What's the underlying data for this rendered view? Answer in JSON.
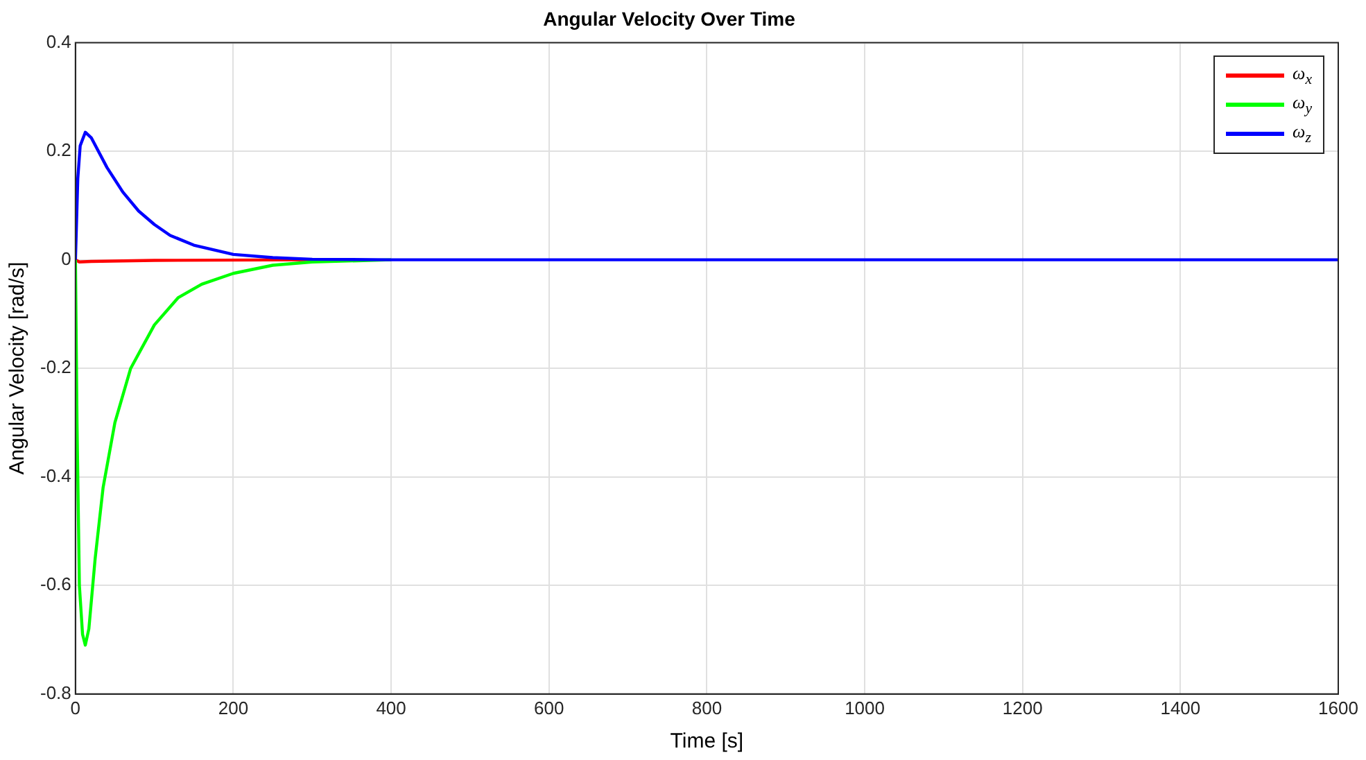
{
  "chart_data": {
    "type": "line",
    "title": "Angular Velocity Over Time",
    "xlabel": "Time [s]",
    "ylabel": "Angular Velocity [rad/s]",
    "xlim": [
      0,
      1600
    ],
    "xticks": [
      0,
      200,
      400,
      600,
      800,
      1000,
      1200,
      1400,
      1600
    ],
    "ylim": [
      -0.8,
      0.4
    ],
    "yticks": [
      -0.8,
      -0.6,
      -0.4,
      -0.2,
      0,
      0.2,
      0.4
    ],
    "grid": true,
    "legend": "top right",
    "marker": "none",
    "line_style": "solid",
    "series": [
      {
        "name": "ω$_{x}$",
        "color": "#ff0000",
        "x": [
          0,
          5,
          20,
          100,
          300
        ],
        "values": [
          0,
          -0.004,
          -0.003,
          -0.001,
          0
        ]
      },
      {
        "name": "ω$_{y}$",
        "color": "#00ff00",
        "x": [
          0,
          2,
          5,
          9,
          12.5,
          17,
          25,
          35,
          50,
          70,
          100,
          130,
          160,
          200,
          250,
          300,
          400
        ],
        "values": [
          0,
          -0.3,
          -0.6,
          -0.69,
          -0.71,
          -0.68,
          -0.55,
          -0.42,
          -0.3,
          -0.2,
          -0.12,
          -0.07,
          -0.045,
          -0.025,
          -0.01,
          -0.004,
          0
        ]
      },
      {
        "name": "ω$_{z}$",
        "color": "#0000ff",
        "x": [
          0,
          3,
          6,
          12.5,
          20,
          40,
          60,
          80,
          100,
          120,
          150,
          200,
          250,
          300,
          400,
          1600
        ],
        "values": [
          0,
          0.15,
          0.21,
          0.235,
          0.225,
          0.17,
          0.125,
          0.09,
          0.065,
          0.045,
          0.027,
          0.01,
          0.004,
          0.001,
          0,
          0
        ]
      }
    ]
  }
}
